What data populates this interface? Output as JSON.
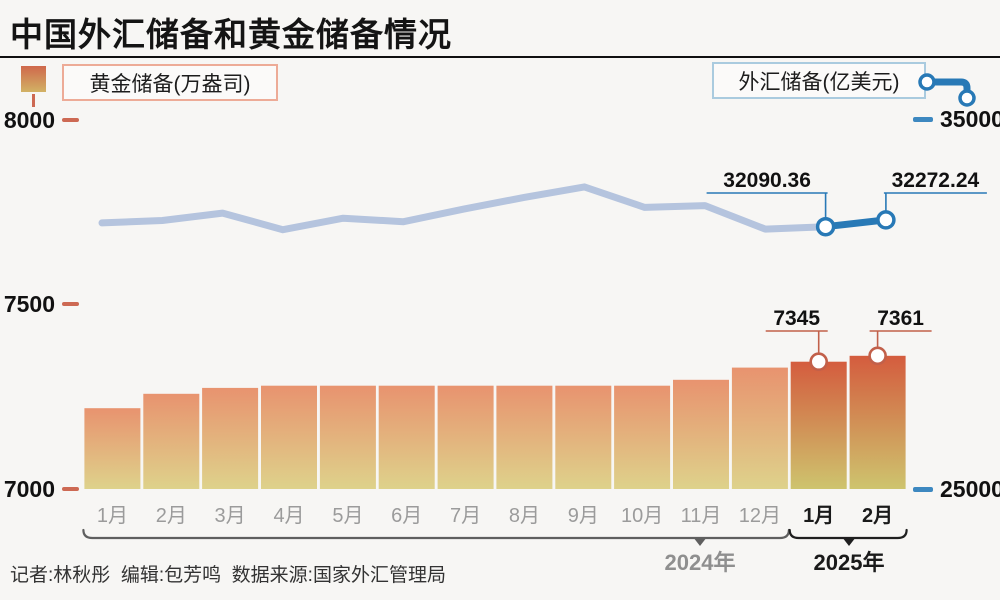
{
  "title": "中国外汇储备和黄金储备情况",
  "legend": {
    "gold_label": "黄金储备(万盎司)",
    "fx_label": "外汇储备(亿美元)"
  },
  "axis_left": {
    "ticks": [
      "8000",
      "7500",
      "7000"
    ]
  },
  "axis_right": {
    "ticks": [
      "35000",
      "25000"
    ]
  },
  "footer": {
    "credit": "记者:林秋彤  编辑:包芳鸣  数据来源:国家外汇管理局"
  },
  "colors": {
    "background": "#f7f6f4",
    "bar2024_top": "#e8936f",
    "bar2024_bottom": "#ded28b",
    "bar2025_top": "#d45c3e",
    "bar2025_bottom": "#cec46e",
    "line2024": "#b5c4de",
    "line2025": "#2879b6",
    "gold_accent": "#c2604a",
    "blue_accent": "#3d88c0",
    "month2024": "#9b9b9b",
    "month2025": "#1a1a1a",
    "bracket2024": "#5f5f5f",
    "bracket2025": "#1f1f1f",
    "year2024": "#8f8f8f",
    "year2025": "#1a1a1a",
    "data_label": "#111111"
  },
  "x_axis": {
    "categories": [
      "1月",
      "2月",
      "3月",
      "4月",
      "5月",
      "6月",
      "7月",
      "8月",
      "9月",
      "10月",
      "11月",
      "12月",
      "1月",
      "2月"
    ],
    "groups": [
      {
        "label": "2024年",
        "from": 0,
        "to": 11,
        "emphasis": false
      },
      {
        "label": "2025年",
        "from": 12,
        "to": 13,
        "emphasis": true
      }
    ]
  },
  "chart_data": [
    {
      "type": "bar",
      "name": "黄金储备(万盎司)",
      "axis": "left",
      "ylim": [
        7000,
        8000
      ],
      "yticks": [
        7000,
        7500,
        8000
      ],
      "values": [
        7219,
        7258,
        7274,
        7280,
        7280,
        7280,
        7280,
        7280,
        7280,
        7280,
        7296,
        7329,
        7345,
        7361
      ],
      "point_labels": {
        "12": "7345",
        "13": "7361"
      },
      "emphasis_from": 12
    },
    {
      "type": "line",
      "name": "外汇储备(亿美元)",
      "axis": "right",
      "ylim": [
        25000,
        35000
      ],
      "yticks": [
        25000,
        35000
      ],
      "values": [
        32193,
        32258,
        32457,
        32008,
        32320,
        32224,
        32564,
        32882,
        33164,
        32610,
        32659,
        32024,
        32090.36,
        32272.24
      ],
      "point_labels": {
        "12": "32090.36",
        "13": "32272.24"
      },
      "emphasis_from": 12
    }
  ]
}
